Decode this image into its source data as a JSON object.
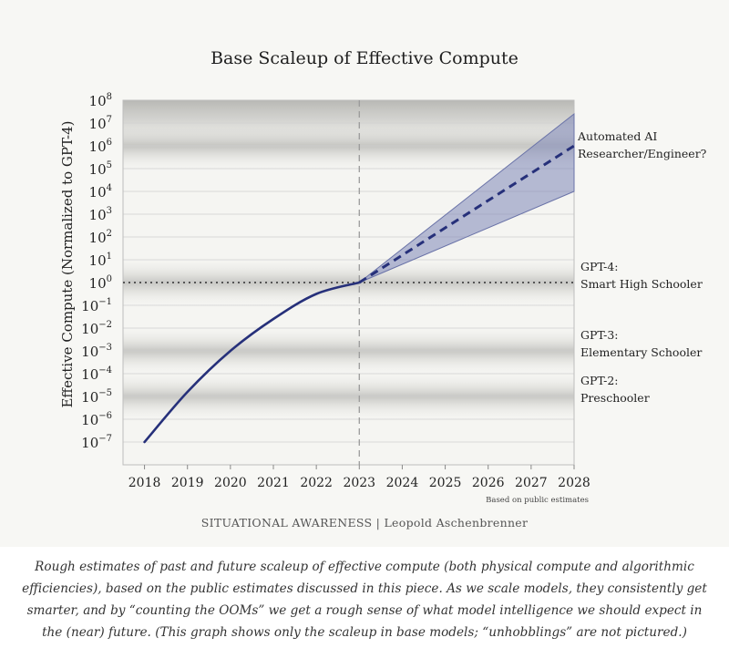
{
  "chart_data": {
    "type": "line",
    "title": "Base Scaleup of Effective Compute",
    "ylabel": "Effective Compute (Normalized to GPT-4)",
    "xlabel": "",
    "x_ticks": [
      "2018",
      "2019",
      "2020",
      "2021",
      "2022",
      "2023",
      "2024",
      "2025",
      "2026",
      "2027",
      "2028"
    ],
    "y_ticks": [
      {
        "base": "10",
        "exp": "8"
      },
      {
        "base": "10",
        "exp": "7"
      },
      {
        "base": "10",
        "exp": "6"
      },
      {
        "base": "10",
        "exp": "5"
      },
      {
        "base": "10",
        "exp": "4"
      },
      {
        "base": "10",
        "exp": "3"
      },
      {
        "base": "10",
        "exp": "2"
      },
      {
        "base": "10",
        "exp": "1"
      },
      {
        "base": "10",
        "exp": "0"
      },
      {
        "base": "10",
        "exp": "−1"
      },
      {
        "base": "10",
        "exp": "−2"
      },
      {
        "base": "10",
        "exp": "−3"
      },
      {
        "base": "10",
        "exp": "−4"
      },
      {
        "base": "10",
        "exp": "−5"
      },
      {
        "base": "10",
        "exp": "−6"
      },
      {
        "base": "10",
        "exp": "−7"
      }
    ],
    "xlim": [
      2017.5,
      2028
    ],
    "ylim_log10": [
      -8,
      8
    ],
    "y_scale": "log",
    "historical": {
      "x": [
        2018,
        2019,
        2020,
        2021,
        2022,
        2023
      ],
      "log10_y": [
        -7.0,
        -4.8,
        -3.0,
        -1.6,
        -0.5,
        0.0
      ]
    },
    "projection": {
      "style": "dashed",
      "x": [
        2023,
        2028
      ],
      "log10_y": [
        0.0,
        6.0
      ],
      "band_upper_log10": [
        0.0,
        7.4
      ],
      "band_lower_log10": [
        0.0,
        4.0
      ]
    },
    "reference_year": 2023,
    "bands": [
      {
        "log10_center": 6.0,
        "label": [
          "Automated AI",
          "Researcher/Engineer?"
        ]
      },
      {
        "log10_center": 0.0,
        "label": [
          "GPT-4:",
          "Smart High Schooler"
        ]
      },
      {
        "log10_center": -3.0,
        "label": [
          "GPT-3:",
          "Elementary Schooler"
        ]
      },
      {
        "log10_center": -5.0,
        "label": [
          "GPT-2:",
          "Preschooler"
        ]
      }
    ],
    "footnote": "Based on public estimates",
    "credit": "SITUATIONAL AWARENESS | Leopold Aschenbrenner",
    "colors": {
      "line": "#26307a",
      "band_fill": "#7d86b8",
      "background": "#f7f7f4",
      "grid": "#cfcfcf"
    },
    "grid": true
  },
  "caption": "Rough estimates of past and future scaleup of effective compute (both physical compute and algorithmic efficiencies), based on the public estimates discussed in this piece. As we scale models, they consistently get smarter, and by “counting the OOMs” we get a rough sense of what model intelligence we should expect in the (near) future. (This graph shows only the scaleup in base models; “unhobblings” are not pictured.)"
}
